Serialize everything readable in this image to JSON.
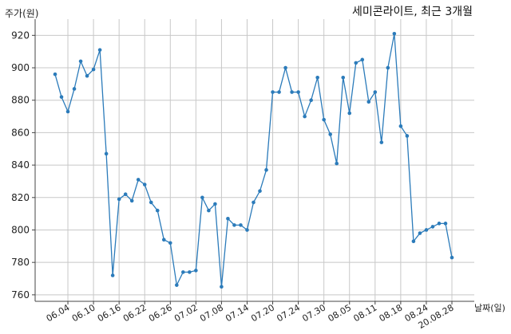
{
  "chart_data": {
    "type": "line",
    "title": "세미콘라이트, 최근 3개월",
    "ylabel": "주가(원)",
    "xlabel": "날짜(일)",
    "ylim": [
      756,
      930
    ],
    "y_ticks": [
      760,
      780,
      800,
      820,
      840,
      860,
      880,
      900,
      920
    ],
    "x_tick_labels": [
      "06.04",
      "06.10",
      "06.16",
      "06.22",
      "06.26",
      "07.02",
      "07.08",
      "07.14",
      "07.20",
      "07.24",
      "07.30",
      "08.05",
      "08.11",
      "08.18",
      "08.24",
      "20.08.28"
    ],
    "x_tick_indices": [
      2,
      6,
      10,
      14,
      18,
      22,
      26,
      30,
      34,
      38,
      42,
      46,
      50,
      54,
      58,
      62
    ],
    "grid": true,
    "line_color": "#2b7bba",
    "series": [
      {
        "values": [
          896,
          882,
          873,
          887,
          904,
          895,
          899,
          911,
          847,
          772,
          819,
          822,
          818,
          831,
          828,
          817,
          812,
          794,
          792,
          766,
          774,
          774,
          775,
          820,
          812,
          816,
          765,
          807,
          803,
          803,
          800,
          817,
          824,
          837,
          885,
          885,
          900,
          885,
          885,
          870,
          880,
          894,
          868,
          859,
          841,
          894,
          872,
          903,
          905,
          879,
          885,
          854,
          900,
          921,
          864,
          858,
          793,
          798,
          800,
          802,
          804,
          804,
          783
        ]
      }
    ]
  }
}
